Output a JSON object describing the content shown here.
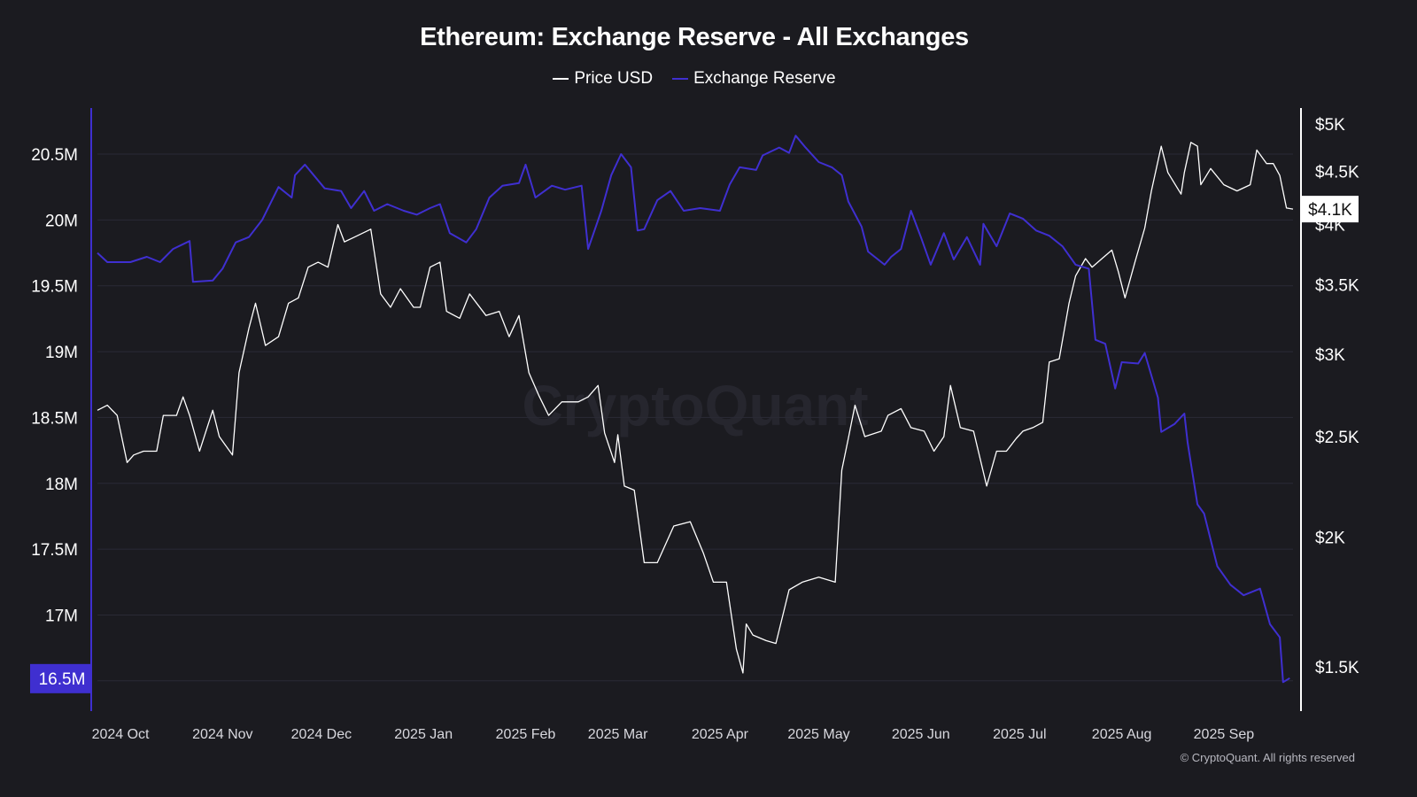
{
  "chart_data": {
    "type": "line",
    "title": "Ethereum: Exchange Reserve - All Exchanges",
    "legend": [
      "Price USD",
      "Exchange Reserve"
    ],
    "legend_placement": "top",
    "watermark": "CryptoQuant",
    "copyright": "© CryptoQuant. All rights reserved",
    "grid": true,
    "colors": {
      "background": "#1b1b20",
      "price": "#ffffff",
      "reserve": "#3f2fd0",
      "grid": "#2a2a36"
    },
    "x_ticks": [
      "2024 Oct",
      "2024 Nov",
      "2024 Dec",
      "2025 Jan",
      "2025 Feb",
      "2025 Mar",
      "2025 Apr",
      "2025 May",
      "2025 Jun",
      "2025 Jul",
      "2025 Aug",
      "2025 Sep"
    ],
    "x_tick_dates": [
      "2024-10-01",
      "2024-11-01",
      "2024-12-01",
      "2025-01-01",
      "2025-02-01",
      "2025-03-01",
      "2025-04-01",
      "2025-05-01",
      "2025-06-01",
      "2025-07-01",
      "2025-08-01",
      "2025-09-01"
    ],
    "xlim": [
      "2024-09-24",
      "2025-09-22"
    ],
    "y_left": {
      "label": "",
      "scale": "linear",
      "unit": "M",
      "ylim": [
        16.27,
        20.85
      ],
      "ticks": [
        "20.5M",
        "20M",
        "19.5M",
        "19M",
        "18.5M",
        "18M",
        "17.5M",
        "17M"
      ],
      "tick_values": [
        20.5,
        20,
        19.5,
        19,
        18.5,
        18,
        17.5,
        17
      ],
      "current_label": "16.5M"
    },
    "y_right": {
      "label": "",
      "scale": "log",
      "ylim": [
        1360,
        5180
      ],
      "ticks": [
        "$5K",
        "$4.5K",
        "$4K",
        "$3.5K",
        "$3K",
        "$2.5K",
        "$2K",
        "$1.5K"
      ],
      "tick_values": [
        5000,
        4500,
        4000,
        3500,
        3000,
        2500,
        2000,
        1500
      ],
      "current_label": "$4.1K"
    },
    "series": [
      {
        "name": "Price USD",
        "axis": "right",
        "points": [
          [
            "2024-09-24",
            2650
          ],
          [
            "2024-09-27",
            2680
          ],
          [
            "2024-09-30",
            2620
          ],
          [
            "2024-10-03",
            2360
          ],
          [
            "2024-10-05",
            2400
          ],
          [
            "2024-10-08",
            2420
          ],
          [
            "2024-10-12",
            2420
          ],
          [
            "2024-10-14",
            2620
          ],
          [
            "2024-10-18",
            2620
          ],
          [
            "2024-10-20",
            2730
          ],
          [
            "2024-10-22",
            2620
          ],
          [
            "2024-10-25",
            2420
          ],
          [
            "2024-10-29",
            2650
          ],
          [
            "2024-10-31",
            2500
          ],
          [
            "2024-11-04",
            2400
          ],
          [
            "2024-11-06",
            2880
          ],
          [
            "2024-11-09",
            3180
          ],
          [
            "2024-11-11",
            3360
          ],
          [
            "2024-11-14",
            3060
          ],
          [
            "2024-11-18",
            3120
          ],
          [
            "2024-11-21",
            3360
          ],
          [
            "2024-11-24",
            3400
          ],
          [
            "2024-11-27",
            3640
          ],
          [
            "2024-11-30",
            3680
          ],
          [
            "2024-12-03",
            3640
          ],
          [
            "2024-12-06",
            4000
          ],
          [
            "2024-12-08",
            3850
          ],
          [
            "2024-12-11",
            3890
          ],
          [
            "2024-12-16",
            3960
          ],
          [
            "2024-12-19",
            3430
          ],
          [
            "2024-12-22",
            3330
          ],
          [
            "2024-12-25",
            3470
          ],
          [
            "2024-12-29",
            3330
          ],
          [
            "2024-12-31",
            3330
          ],
          [
            "2025-01-03",
            3640
          ],
          [
            "2025-01-06",
            3680
          ],
          [
            "2025-01-08",
            3300
          ],
          [
            "2025-01-12",
            3250
          ],
          [
            "2025-01-15",
            3430
          ],
          [
            "2025-01-20",
            3270
          ],
          [
            "2025-01-24",
            3300
          ],
          [
            "2025-01-27",
            3120
          ],
          [
            "2025-01-30",
            3270
          ],
          [
            "2025-02-02",
            2880
          ],
          [
            "2025-02-05",
            2740
          ],
          [
            "2025-02-08",
            2620
          ],
          [
            "2025-02-12",
            2700
          ],
          [
            "2025-02-17",
            2700
          ],
          [
            "2025-02-20",
            2730
          ],
          [
            "2025-02-23",
            2800
          ],
          [
            "2025-02-25",
            2520
          ],
          [
            "2025-02-28",
            2360
          ],
          [
            "2025-03-01",
            2510
          ],
          [
            "2025-03-03",
            2240
          ],
          [
            "2025-03-06",
            2220
          ],
          [
            "2025-03-09",
            1890
          ],
          [
            "2025-03-13",
            1890
          ],
          [
            "2025-03-18",
            2050
          ],
          [
            "2025-03-23",
            2070
          ],
          [
            "2025-03-27",
            1930
          ],
          [
            "2025-03-30",
            1810
          ],
          [
            "2025-04-03",
            1810
          ],
          [
            "2025-04-06",
            1560
          ],
          [
            "2025-04-08",
            1480
          ],
          [
            "2025-04-09",
            1650
          ],
          [
            "2025-04-11",
            1610
          ],
          [
            "2025-04-15",
            1590
          ],
          [
            "2025-04-18",
            1580
          ],
          [
            "2025-04-22",
            1780
          ],
          [
            "2025-04-26",
            1810
          ],
          [
            "2025-05-01",
            1830
          ],
          [
            "2025-05-06",
            1810
          ],
          [
            "2025-05-08",
            2320
          ],
          [
            "2025-05-10",
            2490
          ],
          [
            "2025-05-12",
            2680
          ],
          [
            "2025-05-15",
            2500
          ],
          [
            "2025-05-20",
            2530
          ],
          [
            "2025-05-22",
            2620
          ],
          [
            "2025-05-26",
            2660
          ],
          [
            "2025-05-29",
            2550
          ],
          [
            "2025-06-02",
            2530
          ],
          [
            "2025-06-05",
            2420
          ],
          [
            "2025-06-08",
            2500
          ],
          [
            "2025-06-10",
            2800
          ],
          [
            "2025-06-13",
            2550
          ],
          [
            "2025-06-17",
            2530
          ],
          [
            "2025-06-21",
            2240
          ],
          [
            "2025-06-24",
            2420
          ],
          [
            "2025-06-27",
            2420
          ],
          [
            "2025-06-30",
            2490
          ],
          [
            "2025-07-02",
            2530
          ],
          [
            "2025-07-05",
            2550
          ],
          [
            "2025-07-08",
            2580
          ],
          [
            "2025-07-10",
            2950
          ],
          [
            "2025-07-13",
            2970
          ],
          [
            "2025-07-16",
            3360
          ],
          [
            "2025-07-18",
            3570
          ],
          [
            "2025-07-21",
            3710
          ],
          [
            "2025-07-23",
            3640
          ],
          [
            "2025-07-26",
            3710
          ],
          [
            "2025-07-29",
            3780
          ],
          [
            "2025-07-31",
            3600
          ],
          [
            "2025-08-02",
            3400
          ],
          [
            "2025-08-05",
            3680
          ],
          [
            "2025-08-08",
            3970
          ],
          [
            "2025-08-10",
            4310
          ],
          [
            "2025-08-13",
            4760
          ],
          [
            "2025-08-15",
            4490
          ],
          [
            "2025-08-19",
            4280
          ],
          [
            "2025-08-20",
            4490
          ],
          [
            "2025-08-22",
            4800
          ],
          [
            "2025-08-24",
            4760
          ],
          [
            "2025-08-25",
            4370
          ],
          [
            "2025-08-28",
            4530
          ],
          [
            "2025-09-01",
            4370
          ],
          [
            "2025-09-05",
            4310
          ],
          [
            "2025-09-09",
            4370
          ],
          [
            "2025-09-11",
            4720
          ],
          [
            "2025-09-14",
            4580
          ],
          [
            "2025-09-16",
            4580
          ],
          [
            "2025-09-18",
            4460
          ],
          [
            "2025-09-20",
            4150
          ],
          [
            "2025-09-22",
            4140
          ]
        ]
      },
      {
        "name": "Exchange Reserve",
        "axis": "left",
        "points": [
          [
            "2024-09-24",
            19.75
          ],
          [
            "2024-09-27",
            19.68
          ],
          [
            "2024-10-04",
            19.68
          ],
          [
            "2024-10-09",
            19.72
          ],
          [
            "2024-10-13",
            19.68
          ],
          [
            "2024-10-17",
            19.78
          ],
          [
            "2024-10-22",
            19.84
          ],
          [
            "2024-10-23",
            19.53
          ],
          [
            "2024-10-29",
            19.54
          ],
          [
            "2024-11-01",
            19.63
          ],
          [
            "2024-11-05",
            19.83
          ],
          [
            "2024-11-09",
            19.87
          ],
          [
            "2024-11-13",
            20.0
          ],
          [
            "2024-11-18",
            20.25
          ],
          [
            "2024-11-22",
            20.17
          ],
          [
            "2024-11-23",
            20.34
          ],
          [
            "2024-11-26",
            20.42
          ],
          [
            "2024-12-02",
            20.24
          ],
          [
            "2024-12-07",
            20.22
          ],
          [
            "2024-12-10",
            20.09
          ],
          [
            "2024-12-14",
            20.22
          ],
          [
            "2024-12-17",
            20.07
          ],
          [
            "2024-12-21",
            20.12
          ],
          [
            "2024-12-26",
            20.07
          ],
          [
            "2024-12-30",
            20.04
          ],
          [
            "2025-01-03",
            20.09
          ],
          [
            "2025-01-06",
            20.12
          ],
          [
            "2025-01-09",
            19.9
          ],
          [
            "2025-01-14",
            19.83
          ],
          [
            "2025-01-17",
            19.93
          ],
          [
            "2025-01-21",
            20.17
          ],
          [
            "2025-01-25",
            20.26
          ],
          [
            "2025-01-30",
            20.28
          ],
          [
            "2025-02-01",
            20.42
          ],
          [
            "2025-02-04",
            20.17
          ],
          [
            "2025-02-09",
            20.26
          ],
          [
            "2025-02-13",
            20.23
          ],
          [
            "2025-02-18",
            20.26
          ],
          [
            "2025-02-20",
            19.78
          ],
          [
            "2025-02-24",
            20.07
          ],
          [
            "2025-02-27",
            20.34
          ],
          [
            "2025-03-02",
            20.5
          ],
          [
            "2025-03-05",
            20.4
          ],
          [
            "2025-03-07",
            19.92
          ],
          [
            "2025-03-09",
            19.93
          ],
          [
            "2025-03-13",
            20.15
          ],
          [
            "2025-03-17",
            20.22
          ],
          [
            "2025-03-21",
            20.07
          ],
          [
            "2025-03-26",
            20.09
          ],
          [
            "2025-04-01",
            20.07
          ],
          [
            "2025-04-04",
            20.27
          ],
          [
            "2025-04-07",
            20.4
          ],
          [
            "2025-04-12",
            20.38
          ],
          [
            "2025-04-14",
            20.49
          ],
          [
            "2025-04-19",
            20.55
          ],
          [
            "2025-04-22",
            20.51
          ],
          [
            "2025-04-24",
            20.64
          ],
          [
            "2025-04-27",
            20.55
          ],
          [
            "2025-05-01",
            20.44
          ],
          [
            "2025-05-05",
            20.4
          ],
          [
            "2025-05-08",
            20.34
          ],
          [
            "2025-05-10",
            20.14
          ],
          [
            "2025-05-14",
            19.95
          ],
          [
            "2025-05-16",
            19.76
          ],
          [
            "2025-05-21",
            19.66
          ],
          [
            "2025-05-23",
            19.72
          ],
          [
            "2025-05-26",
            19.78
          ],
          [
            "2025-05-29",
            20.07
          ],
          [
            "2025-06-01",
            19.87
          ],
          [
            "2025-06-04",
            19.66
          ],
          [
            "2025-06-08",
            19.9
          ],
          [
            "2025-06-11",
            19.7
          ],
          [
            "2025-06-15",
            19.87
          ],
          [
            "2025-06-19",
            19.66
          ],
          [
            "2025-06-20",
            19.97
          ],
          [
            "2025-06-24",
            19.8
          ],
          [
            "2025-06-28",
            20.05
          ],
          [
            "2025-07-02",
            20.01
          ],
          [
            "2025-07-06",
            19.92
          ],
          [
            "2025-07-10",
            19.88
          ],
          [
            "2025-07-14",
            19.8
          ],
          [
            "2025-07-18",
            19.66
          ],
          [
            "2025-07-22",
            19.63
          ],
          [
            "2025-07-24",
            19.09
          ],
          [
            "2025-07-27",
            19.06
          ],
          [
            "2025-07-30",
            18.72
          ],
          [
            "2025-08-01",
            18.92
          ],
          [
            "2025-08-06",
            18.91
          ],
          [
            "2025-08-08",
            18.99
          ],
          [
            "2025-08-12",
            18.65
          ],
          [
            "2025-08-13",
            18.39
          ],
          [
            "2025-08-17",
            18.45
          ],
          [
            "2025-08-20",
            18.53
          ],
          [
            "2025-08-21",
            18.31
          ],
          [
            "2025-08-24",
            17.84
          ],
          [
            "2025-08-26",
            17.77
          ],
          [
            "2025-08-30",
            17.37
          ],
          [
            "2025-09-03",
            17.23
          ],
          [
            "2025-09-07",
            17.15
          ],
          [
            "2025-09-12",
            17.2
          ],
          [
            "2025-09-15",
            16.93
          ],
          [
            "2025-09-18",
            16.83
          ],
          [
            "2025-09-19",
            16.49
          ],
          [
            "2025-09-21",
            16.52
          ]
        ]
      }
    ]
  }
}
